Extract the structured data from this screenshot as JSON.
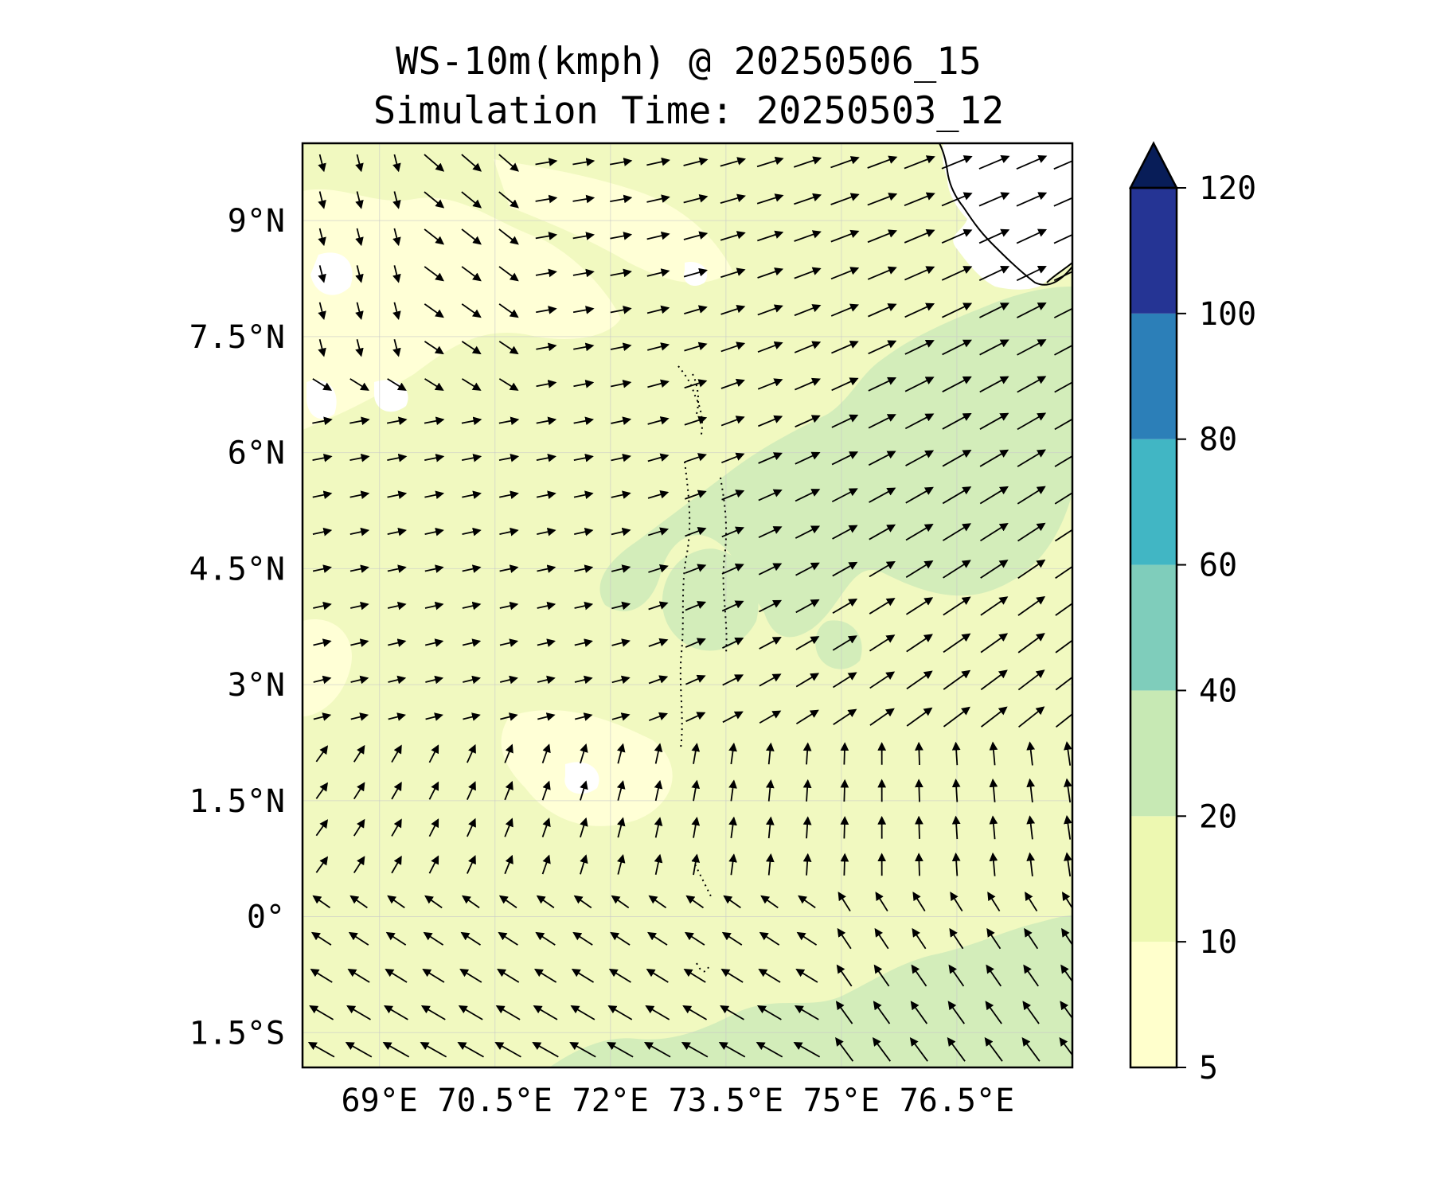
{
  "title": {
    "line1": "WS-10m(kmph) @ 20250506_15",
    "line2": "Simulation Time: 20250503_12"
  },
  "map": {
    "lon_range": [
      68.0,
      78.0
    ],
    "lat_range": [
      -1.95,
      10.0
    ],
    "gridlines": true,
    "lon_ticks": [
      {
        "value": 69.0,
        "label": "69°E"
      },
      {
        "value": 70.5,
        "label": "70.5°E"
      },
      {
        "value": 72.0,
        "label": "72°E"
      },
      {
        "value": 73.5,
        "label": "73.5°E"
      },
      {
        "value": 75.0,
        "label": "75°E"
      },
      {
        "value": 76.5,
        "label": "76.5°E"
      }
    ],
    "lat_ticks": [
      {
        "value": 9.0,
        "label": "9°N"
      },
      {
        "value": 7.5,
        "label": "7.5°N"
      },
      {
        "value": 6.0,
        "label": "6°N"
      },
      {
        "value": 4.5,
        "label": "4.5°N"
      },
      {
        "value": 3.0,
        "label": "3°N"
      },
      {
        "value": 1.5,
        "label": "1.5°N"
      },
      {
        "value": 0.0,
        "label": "0°"
      },
      {
        "value": -1.5,
        "label": "1.5°S"
      }
    ],
    "coastline_feature": "India southern tip / Sri Lanka coast in upper-right corner",
    "island_feature": "Maldives atolls along 73.5°E"
  },
  "colorbar": {
    "levels": [
      5,
      10,
      20,
      40,
      60,
      80,
      100,
      120
    ],
    "labels": [
      "5",
      "10",
      "20",
      "40",
      "60",
      "80",
      "100",
      "120"
    ],
    "colors": [
      "#ffffcc",
      "#edf8b1",
      "#c7e9b4",
      "#7fcdbb",
      "#41b6c4",
      "#2c7fb8",
      "#253494"
    ],
    "extend_color": "#081d58",
    "extend": "max"
  },
  "field_colors": {
    "light": "#ffffd6",
    "medium": "#f1f9c0",
    "strong": "#d3edba"
  },
  "wind_field": {
    "description": "Westerly winds west of 73°E turning southwesterly in the NE (up to ~25 kmph); southerly/south-easterly flow south of 1.5°N",
    "speed_range_kmph": [
      5,
      30
    ]
  }
}
